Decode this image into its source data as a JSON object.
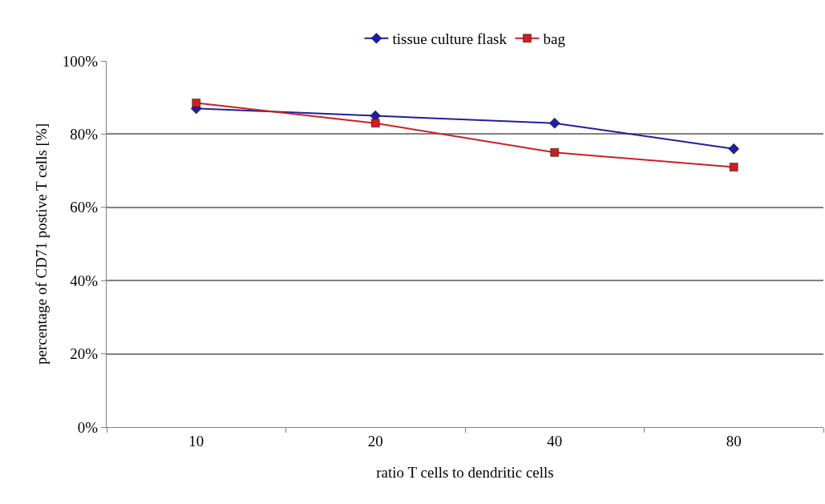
{
  "chart_data": {
    "type": "line",
    "xlabel": "ratio T cells to dendritic cells",
    "ylabel": "percentage of CD71 postive T cells [%]",
    "categories": [
      "10",
      "20",
      "40",
      "80"
    ],
    "series": [
      {
        "name": "tissue culture flask",
        "color": "#1f1f9e",
        "marker": "diamond",
        "values": [
          87,
          85,
          83,
          76
        ]
      },
      {
        "name": "bag",
        "color": "#cc2020",
        "marker": "square",
        "values": [
          88.5,
          83,
          75,
          71
        ]
      }
    ],
    "ylim": [
      0,
      100
    ],
    "yticks": [
      {
        "value": 0,
        "label": "0%"
      },
      {
        "value": 20,
        "label": "20%"
      },
      {
        "value": 40,
        "label": "40%"
      },
      {
        "value": 60,
        "label": "60%"
      },
      {
        "value": 80,
        "label": "80%"
      },
      {
        "value": 100,
        "label": "100%"
      }
    ],
    "grid": "y",
    "legend": "top",
    "line_style": "solid"
  }
}
